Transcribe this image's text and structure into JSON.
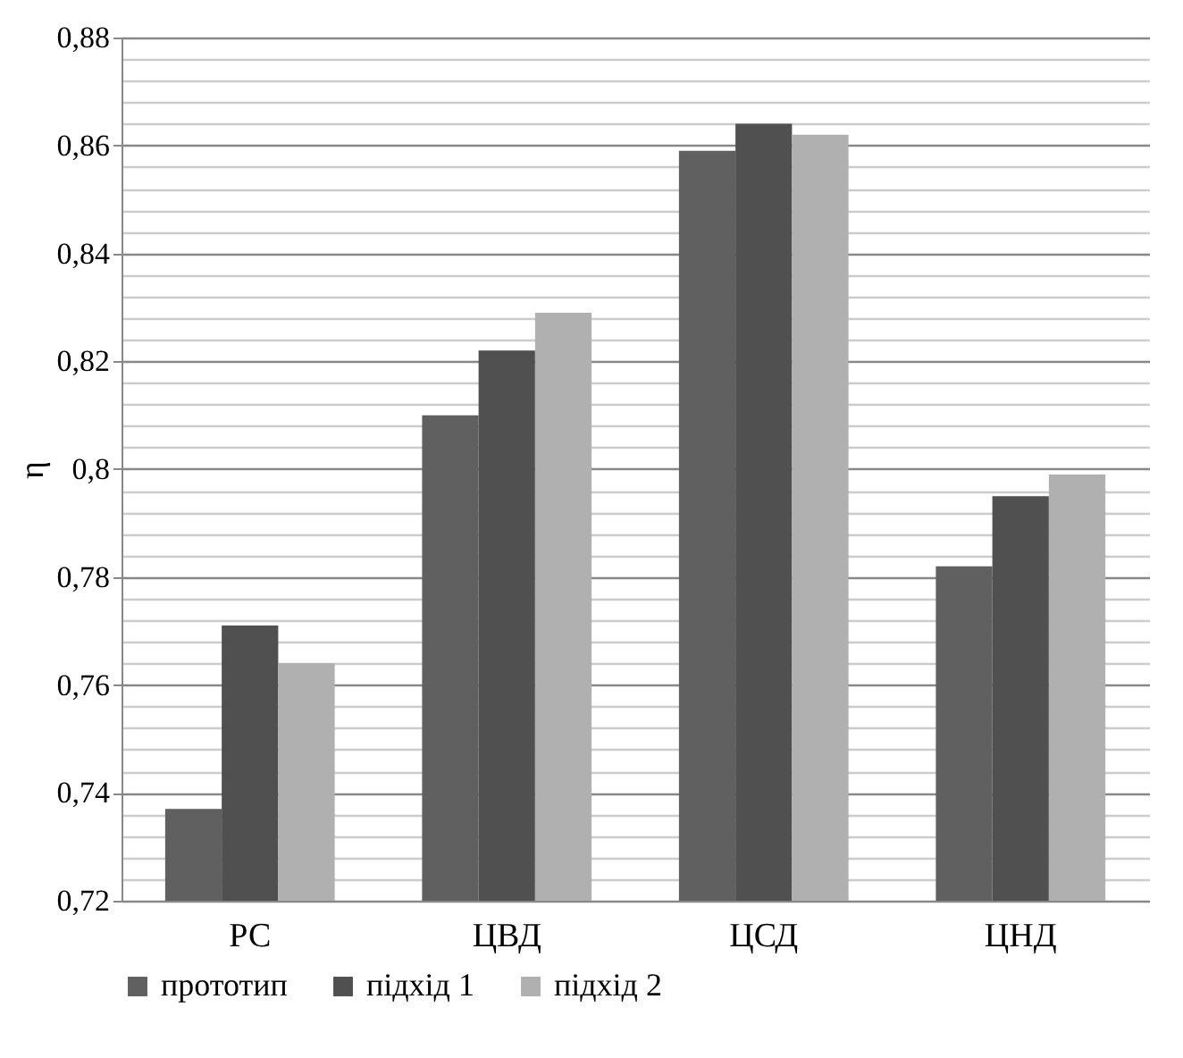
{
  "chart_data": {
    "type": "bar",
    "ylabel": "η",
    "categories": [
      "РС",
      "ЦВД",
      "ЦСД",
      "ЦНД"
    ],
    "series": [
      {
        "name": "прототип",
        "color": "#606060",
        "values": [
          0.737,
          0.81,
          0.859,
          0.782
        ]
      },
      {
        "name": "підхід 1",
        "color": "#505050",
        "values": [
          0.771,
          0.822,
          0.864,
          0.795
        ]
      },
      {
        "name": "підхід 2",
        "color": "#b0b0b0",
        "values": [
          0.764,
          0.829,
          0.862,
          0.799
        ]
      }
    ],
    "ylim": [
      0.72,
      0.88
    ],
    "yticks": [
      {
        "value": 0.72,
        "label": "0,72"
      },
      {
        "value": 0.724,
        "label": null
      },
      {
        "value": 0.728,
        "label": null
      },
      {
        "value": 0.732,
        "label": null
      },
      {
        "value": 0.736,
        "label": null
      },
      {
        "value": 0.74,
        "label": "0,74"
      },
      {
        "value": 0.744,
        "label": null
      },
      {
        "value": 0.748,
        "label": null
      },
      {
        "value": 0.752,
        "label": null
      },
      {
        "value": 0.756,
        "label": null
      },
      {
        "value": 0.76,
        "label": "0,76"
      },
      {
        "value": 0.764,
        "label": null
      },
      {
        "value": 0.768,
        "label": null
      },
      {
        "value": 0.772,
        "label": null
      },
      {
        "value": 0.776,
        "label": null
      },
      {
        "value": 0.78,
        "label": "0,78"
      },
      {
        "value": 0.784,
        "label": null
      },
      {
        "value": 0.788,
        "label": null
      },
      {
        "value": 0.792,
        "label": null
      },
      {
        "value": 0.796,
        "label": null
      },
      {
        "value": 0.8,
        "label": "0,8"
      },
      {
        "value": 0.804,
        "label": null
      },
      {
        "value": 0.808,
        "label": null
      },
      {
        "value": 0.812,
        "label": null
      },
      {
        "value": 0.816,
        "label": null
      },
      {
        "value": 0.82,
        "label": "0,82"
      },
      {
        "value": 0.824,
        "label": null
      },
      {
        "value": 0.828,
        "label": null
      },
      {
        "value": 0.832,
        "label": null
      },
      {
        "value": 0.836,
        "label": null
      },
      {
        "value": 0.84,
        "label": "0,84"
      },
      {
        "value": 0.844,
        "label": null
      },
      {
        "value": 0.848,
        "label": null
      },
      {
        "value": 0.852,
        "label": null
      },
      {
        "value": 0.856,
        "label": null
      },
      {
        "value": 0.86,
        "label": "0,86"
      },
      {
        "value": 0.864,
        "label": null
      },
      {
        "value": 0.868,
        "label": null
      },
      {
        "value": 0.872,
        "label": null
      },
      {
        "value": 0.876,
        "label": null
      },
      {
        "value": 0.88,
        "label": "0,88"
      }
    ],
    "grid": "y",
    "legend": "bottom"
  }
}
